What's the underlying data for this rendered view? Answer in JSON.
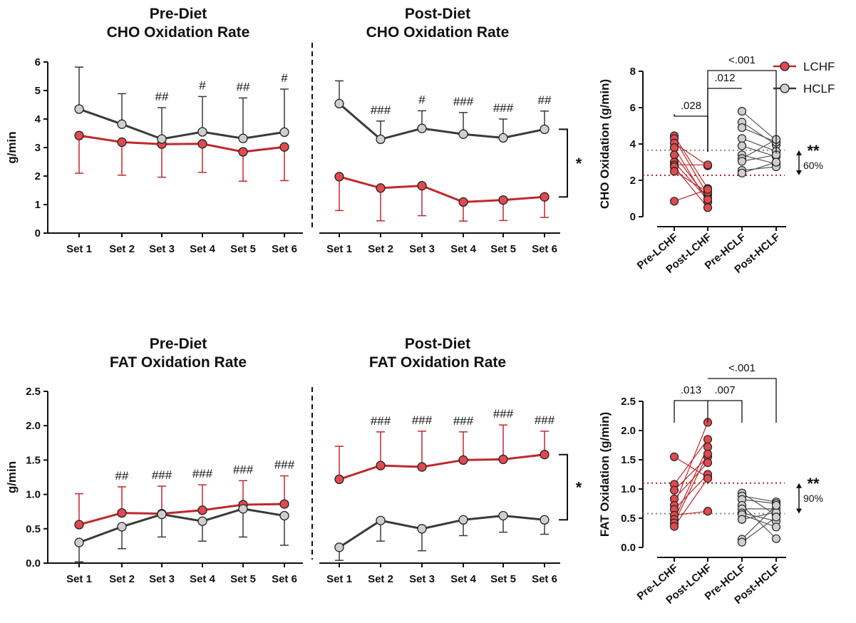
{
  "colors": {
    "lchf": "#c0282d",
    "lchf_fill": "#e04a4f",
    "hclf": "#3a3a3a",
    "hclf_fill": "#cfcfcf",
    "axis": "#111111"
  },
  "legend": [
    {
      "name": "LCHF",
      "color": "#c0282d",
      "fill": "#e04a4f"
    },
    {
      "name": "HCLF",
      "color": "#3a3a3a",
      "fill": "#cfcfcf"
    }
  ],
  "chart_data": [
    {
      "type": "line",
      "title": "Pre-Diet\nCHO Oxidation Rate",
      "ylabel": "g/min",
      "ylim": [
        0,
        6
      ],
      "yticks": [
        "0",
        "1",
        "2",
        "3",
        "4",
        "5",
        "6"
      ],
      "categories": [
        "Set 1",
        "Set 2",
        "Set 3",
        "Set 4",
        "Set 5",
        "Set 6"
      ],
      "series": [
        {
          "name": "LCHF",
          "values": [
            3.42,
            3.19,
            3.12,
            3.13,
            2.85,
            3.02
          ],
          "sd": [
            1.32,
            1.16,
            1.16,
            1.0,
            1.03,
            1.18
          ]
        },
        {
          "name": "HCLF",
          "values": [
            4.35,
            3.82,
            3.3,
            3.55,
            3.32,
            3.54
          ],
          "sd": [
            1.47,
            1.07,
            1.1,
            1.24,
            1.42,
            1.51
          ]
        }
      ],
      "annotations": [
        "",
        "",
        "##",
        "#",
        "##",
        "#"
      ]
    },
    {
      "type": "line",
      "title": "Post-Diet\nCHO Oxidation Rate",
      "ylim": [
        0,
        6
      ],
      "categories": [
        "Set 1",
        "Set 2",
        "Set 3",
        "Set 4",
        "Set 5",
        "Set 6"
      ],
      "series": [
        {
          "name": "LCHF",
          "values": [
            1.98,
            1.58,
            1.66,
            1.09,
            1.16,
            1.27
          ],
          "sd": [
            1.19,
            1.15,
            1.05,
            0.67,
            0.72,
            0.72
          ]
        },
        {
          "name": "HCLF",
          "values": [
            4.54,
            3.29,
            3.67,
            3.47,
            3.34,
            3.64
          ],
          "sd": [
            0.8,
            0.64,
            0.62,
            0.76,
            0.66,
            0.64
          ]
        }
      ],
      "annotations": [
        "",
        "###",
        "#",
        "###",
        "###",
        "##"
      ],
      "bracket_label": "*"
    },
    {
      "type": "scatter",
      "ylabel": "CHO Oxidation (g/min)",
      "ylim": [
        0,
        8
      ],
      "yticks": [
        "0",
        "2",
        "4",
        "6",
        "8"
      ],
      "categories": [
        "Pre-LCHF",
        "Post-LCHF",
        "Pre-HCLF",
        "Post-HCLF"
      ],
      "paired": [
        {
          "name": "LCHF",
          "pre": [
            4.45,
            4.3,
            4.05,
            3.8,
            3.4,
            3.0,
            2.85,
            2.75,
            2.5,
            0.85
          ],
          "post": [
            1.55,
            1.2,
            2.8,
            0.8,
            1.0,
            0.95,
            2.85,
            0.5,
            1.35,
            1.5
          ]
        },
        {
          "name": "HCLF",
          "pre": [
            5.8,
            5.2,
            4.9,
            4.3,
            3.9,
            3.4,
            3.2,
            3.05,
            2.55,
            2.4
          ],
          "post": [
            4.2,
            3.95,
            4.1,
            3.6,
            3.3,
            2.9,
            4.25,
            3.4,
            2.75,
            3.0
          ]
        }
      ],
      "pvalues": [
        ".028",
        ".012",
        "<.001"
      ],
      "reference_lines": {
        "lchf": 2.28,
        "hclf": 3.65
      },
      "diff_label": "**",
      "diff_pct": "60%"
    },
    {
      "type": "line",
      "title": "Pre-Diet\nFAT Oxidation Rate",
      "ylabel": "g/min",
      "ylim": [
        0,
        2.5
      ],
      "yticks": [
        "0.0",
        "0.5",
        "1.0",
        "1.5",
        "2.0",
        "2.5"
      ],
      "categories": [
        "Set 1",
        "Set 2",
        "Set 3",
        "Set 4",
        "Set 5",
        "Set 6"
      ],
      "series": [
        {
          "name": "LCHF",
          "values": [
            0.56,
            0.73,
            0.72,
            0.77,
            0.85,
            0.86
          ],
          "sd": [
            0.45,
            0.38,
            0.4,
            0.37,
            0.35,
            0.41
          ]
        },
        {
          "name": "HCLF",
          "values": [
            0.3,
            0.53,
            0.71,
            0.61,
            0.79,
            0.69
          ],
          "sd": [
            0.28,
            0.32,
            0.33,
            0.29,
            0.41,
            0.43
          ]
        }
      ],
      "annotations": [
        "",
        "##",
        "###",
        "###",
        "###",
        "###"
      ]
    },
    {
      "type": "line",
      "title": "Post-Diet\nFAT Oxidation Rate",
      "ylim": [
        0,
        2.5
      ],
      "categories": [
        "Set 1",
        "Set 2",
        "Set 3",
        "Set 4",
        "Set 5",
        "Set 6"
      ],
      "series": [
        {
          "name": "LCHF",
          "values": [
            1.22,
            1.42,
            1.4,
            1.5,
            1.51,
            1.58
          ],
          "sd": [
            0.48,
            0.49,
            0.52,
            0.41,
            0.5,
            0.34
          ]
        },
        {
          "name": "HCLF",
          "values": [
            0.23,
            0.62,
            0.5,
            0.63,
            0.69,
            0.63
          ],
          "sd": [
            0.19,
            0.3,
            0.32,
            0.23,
            0.24,
            0.21
          ]
        }
      ],
      "annotations": [
        "",
        "###",
        "###",
        "###",
        "###",
        "###"
      ],
      "bracket_label": "*"
    },
    {
      "type": "scatter",
      "ylabel": "FAT Oxidation (g/min)",
      "ylim": [
        0,
        2.5
      ],
      "yticks": [
        "0.0",
        "0.5",
        "1.0",
        "1.5",
        "2.0",
        "2.5"
      ],
      "categories": [
        "Pre-LCHF",
        "Post-LCHF",
        "Pre-HCLF",
        "Post-HCLF"
      ],
      "paired": [
        {
          "name": "LCHF",
          "pre": [
            1.55,
            1.08,
            0.98,
            0.83,
            0.72,
            0.65,
            0.55,
            0.48,
            0.42,
            0.36
          ],
          "post": [
            1.2,
            1.85,
            1.55,
            1.45,
            2.14,
            1.25,
            0.62,
            1.72,
            1.6,
            1.18
          ]
        },
        {
          "name": "HCLF",
          "pre": [
            0.93,
            0.88,
            0.82,
            0.72,
            0.66,
            0.59,
            0.56,
            0.48,
            0.14,
            0.09
          ],
          "post": [
            0.55,
            0.78,
            0.75,
            0.15,
            0.66,
            0.45,
            0.35,
            0.6,
            0.72,
            0.52
          ]
        }
      ],
      "pvalues": [
        ".013",
        ".007",
        "<.001"
      ],
      "reference_lines": {
        "lchf": 1.1,
        "hclf": 0.58
      },
      "diff_label": "**",
      "diff_pct": "90%"
    }
  ]
}
